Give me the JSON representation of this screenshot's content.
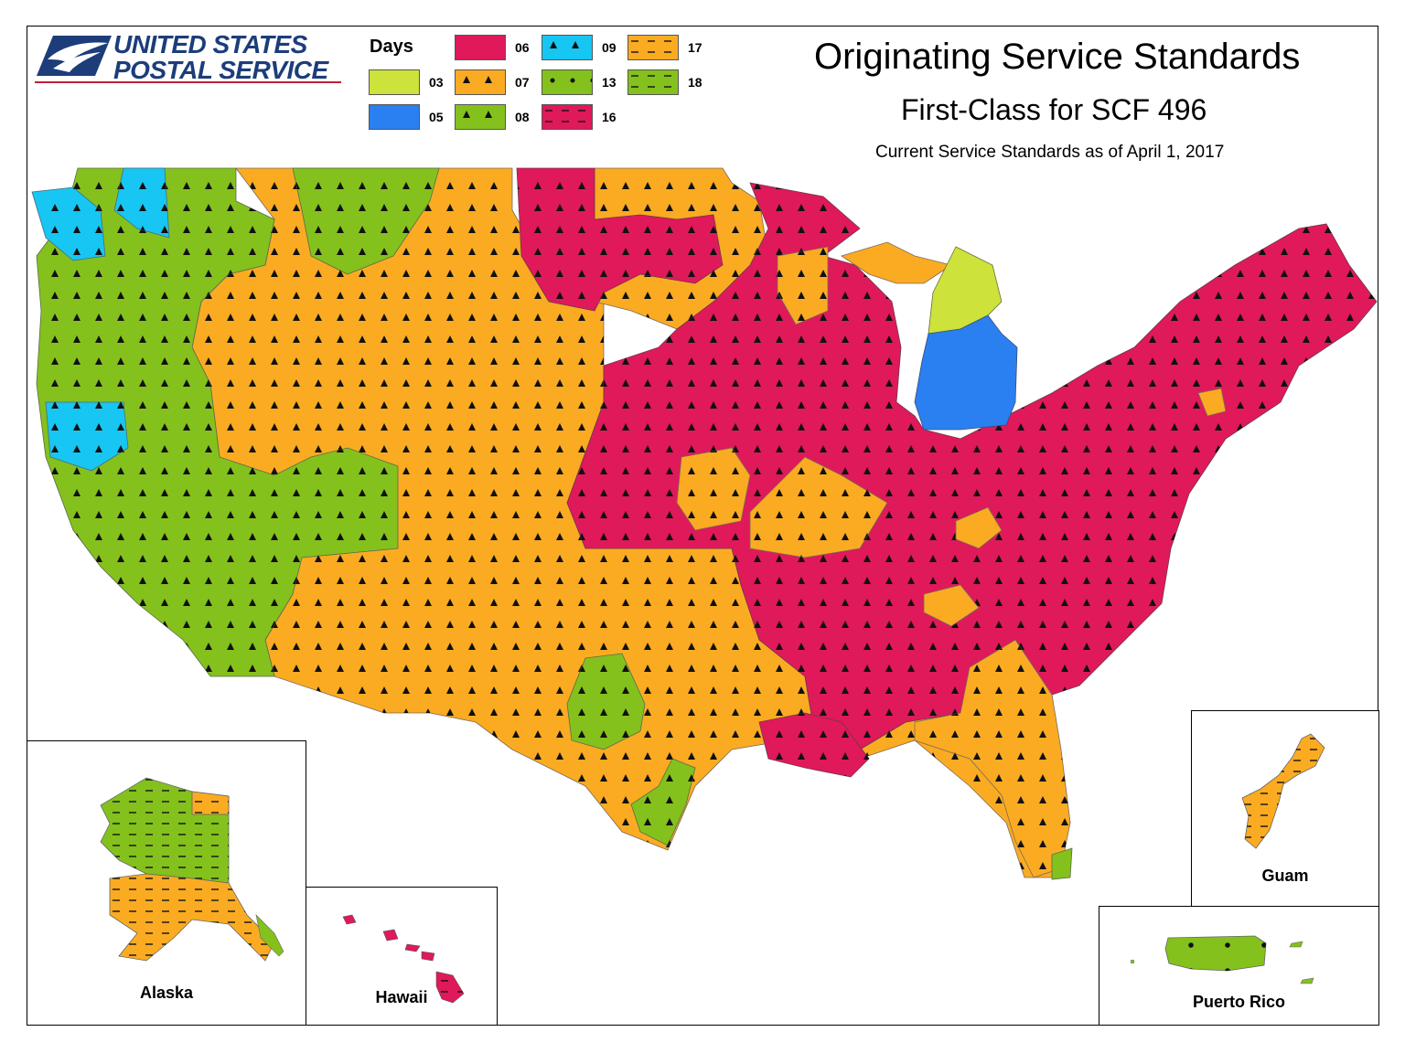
{
  "logo": {
    "line1": "UNITED STATES",
    "line2": "POSTAL SERVICE",
    "line1_suffix": "®",
    "eagle": "eagle-icon"
  },
  "title": "Originating Service Standards",
  "subtitle": "First-Class for SCF 496",
  "as_of": "Current Service Standards as of April 1, 2017",
  "legend": {
    "title": "Days",
    "items": [
      {
        "code": "03",
        "color": "#cde23a",
        "pattern": "solid"
      },
      {
        "code": "05",
        "color": "#2a80f0",
        "pattern": "solid"
      },
      {
        "code": "06",
        "color": "#e0195a",
        "pattern": "solid"
      },
      {
        "code": "07",
        "color": "#fbab22",
        "pattern": "triangles"
      },
      {
        "code": "08",
        "color": "#84c11d",
        "pattern": "triangles"
      },
      {
        "code": "09",
        "color": "#17c6f2",
        "pattern": "triangles"
      },
      {
        "code": "13",
        "color": "#84c11d",
        "pattern": "dots"
      },
      {
        "code": "16",
        "color": "#e0195a",
        "pattern": "dashes"
      },
      {
        "code": "17",
        "color": "#fbab22",
        "pattern": "dashes"
      },
      {
        "code": "18",
        "color": "#84c11d",
        "pattern": "dashes"
      }
    ]
  },
  "insets": {
    "alaska": "Alaska",
    "hawaii": "Hawaii",
    "guam": "Guam",
    "puerto_rico": "Puerto Rico"
  }
}
